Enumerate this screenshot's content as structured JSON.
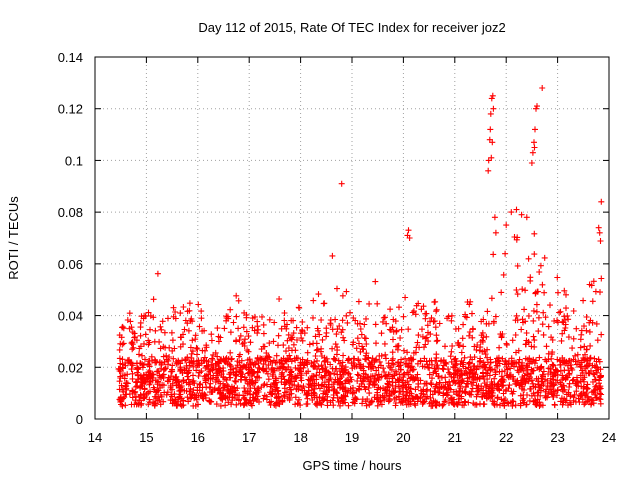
{
  "chart_data": {
    "type": "scatter",
    "title": "Day 112 of 2015, Rate Of TEC Index for receiver joz2",
    "xlabel": "GPS time / hours",
    "ylabel": "ROTI / TECUs",
    "xlim": [
      14,
      24
    ],
    "ylim": [
      0,
      0.14
    ],
    "xticks": [
      14,
      15,
      16,
      17,
      18,
      19,
      20,
      21,
      22,
      23,
      24
    ],
    "yticks": [
      0,
      0.02,
      0.04,
      0.06,
      0.08,
      0.1,
      0.12,
      0.14
    ],
    "xtick_labels": [
      "14",
      "15",
      "16",
      "17",
      "18",
      "19",
      "20",
      "21",
      "22",
      "23",
      "24"
    ],
    "ytick_labels": [
      "0",
      "0.02",
      "0.04",
      "0.06",
      "0.08",
      "0.1",
      "0.12",
      "0.14"
    ],
    "grid": true,
    "marker": "+",
    "color": "#ff0000",
    "x_range_of_data": [
      14.45,
      23.85
    ],
    "baseline_band": [
      0.005,
      0.03
    ],
    "envelope": [
      [
        14.45,
        0.03
      ],
      [
        14.6,
        0.046
      ],
      [
        14.8,
        0.036
      ],
      [
        15.0,
        0.044
      ],
      [
        15.2,
        0.06
      ],
      [
        15.4,
        0.045
      ],
      [
        15.7,
        0.044
      ],
      [
        16.0,
        0.05
      ],
      [
        16.3,
        0.035
      ],
      [
        16.5,
        0.038
      ],
      [
        16.7,
        0.056
      ],
      [
        16.9,
        0.045
      ],
      [
        17.1,
        0.045
      ],
      [
        17.3,
        0.04
      ],
      [
        17.5,
        0.05
      ],
      [
        17.8,
        0.04
      ],
      [
        18.0,
        0.044
      ],
      [
        18.2,
        0.045
      ],
      [
        18.4,
        0.05
      ],
      [
        18.6,
        0.064
      ],
      [
        18.8,
        0.055
      ],
      [
        19.0,
        0.05
      ],
      [
        19.3,
        0.048
      ],
      [
        19.6,
        0.058
      ],
      [
        19.8,
        0.048
      ],
      [
        20.05,
        0.072
      ],
      [
        20.3,
        0.05
      ],
      [
        20.5,
        0.046
      ],
      [
        20.8,
        0.046
      ],
      [
        21.0,
        0.055
      ],
      [
        21.2,
        0.045
      ],
      [
        21.4,
        0.048
      ],
      [
        21.6,
        0.05
      ],
      [
        21.8,
        0.07
      ],
      [
        22.0,
        0.075
      ],
      [
        22.2,
        0.08
      ],
      [
        22.4,
        0.065
      ],
      [
        22.6,
        0.078
      ],
      [
        22.8,
        0.06
      ],
      [
        23.0,
        0.055
      ],
      [
        23.2,
        0.048
      ],
      [
        23.4,
        0.055
      ],
      [
        23.6,
        0.05
      ],
      [
        23.85,
        0.073
      ]
    ],
    "notable_points": [
      {
        "x": 18.8,
        "y": 0.091
      },
      {
        "x": 20.1,
        "y": 0.073
      },
      {
        "x": 20.08,
        "y": 0.071
      },
      {
        "x": 20.12,
        "y": 0.07
      },
      {
        "x": 21.65,
        "y": 0.096
      },
      {
        "x": 21.66,
        "y": 0.1
      },
      {
        "x": 21.68,
        "y": 0.108
      },
      {
        "x": 21.7,
        "y": 0.118
      },
      {
        "x": 21.72,
        "y": 0.124
      },
      {
        "x": 21.74,
        "y": 0.125
      },
      {
        "x": 21.69,
        "y": 0.112
      },
      {
        "x": 21.71,
        "y": 0.101
      },
      {
        "x": 21.73,
        "y": 0.107
      },
      {
        "x": 21.75,
        "y": 0.12
      },
      {
        "x": 21.78,
        "y": 0.078
      },
      {
        "x": 21.8,
        "y": 0.072
      },
      {
        "x": 22.5,
        "y": 0.099
      },
      {
        "x": 22.52,
        "y": 0.103
      },
      {
        "x": 22.54,
        "y": 0.107
      },
      {
        "x": 22.56,
        "y": 0.112
      },
      {
        "x": 22.58,
        "y": 0.12
      },
      {
        "x": 22.6,
        "y": 0.121
      },
      {
        "x": 22.55,
        "y": 0.105
      },
      {
        "x": 22.7,
        "y": 0.128
      },
      {
        "x": 22.1,
        "y": 0.08
      },
      {
        "x": 22.2,
        "y": 0.081
      },
      {
        "x": 22.3,
        "y": 0.079
      },
      {
        "x": 22.0,
        "y": 0.075
      },
      {
        "x": 22.4,
        "y": 0.078
      },
      {
        "x": 23.85,
        "y": 0.084
      },
      {
        "x": 23.8,
        "y": 0.074
      },
      {
        "x": 23.82,
        "y": 0.072
      }
    ]
  }
}
